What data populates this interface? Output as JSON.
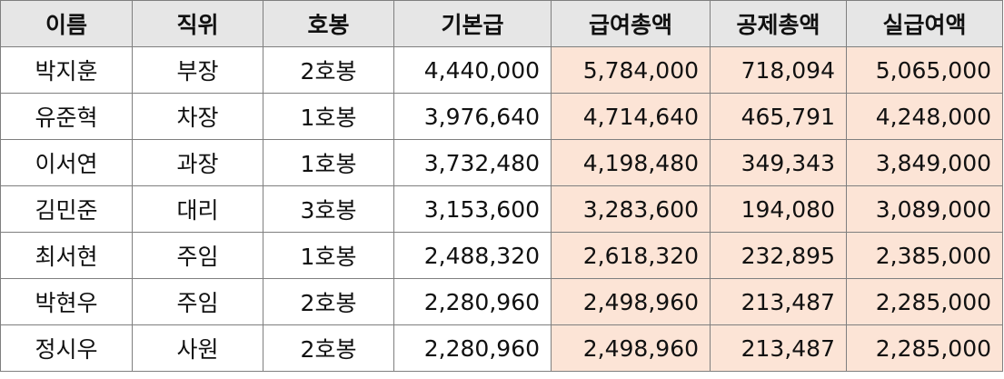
{
  "table": {
    "headers": [
      "이름",
      "직위",
      "호봉",
      "기본급",
      "급여총액",
      "공제총액",
      "실급여액"
    ],
    "highlight_color": "#fce4d6",
    "header_color": "#e6e6e6",
    "rows": [
      [
        "박지훈",
        "부장",
        "2호봉",
        "4,440,000",
        "5,784,000",
        "718,094",
        "5,065,000"
      ],
      [
        "유준혁",
        "차장",
        "1호봉",
        "3,976,640",
        "4,714,640",
        "465,791",
        "4,248,000"
      ],
      [
        "이서연",
        "과장",
        "1호봉",
        "3,732,480",
        "4,198,480",
        "349,343",
        "3,849,000"
      ],
      [
        "김민준",
        "대리",
        "3호봉",
        "3,153,600",
        "3,283,600",
        "194,080",
        "3,089,000"
      ],
      [
        "최서현",
        "주임",
        "1호봉",
        "2,488,320",
        "2,618,320",
        "232,895",
        "2,385,000"
      ],
      [
        "박현우",
        "주임",
        "2호봉",
        "2,280,960",
        "2,498,960",
        "213,487",
        "2,285,000"
      ],
      [
        "정시우",
        "사원",
        "2호봉",
        "2,280,960",
        "2,498,960",
        "213,487",
        "2,285,000"
      ]
    ]
  }
}
